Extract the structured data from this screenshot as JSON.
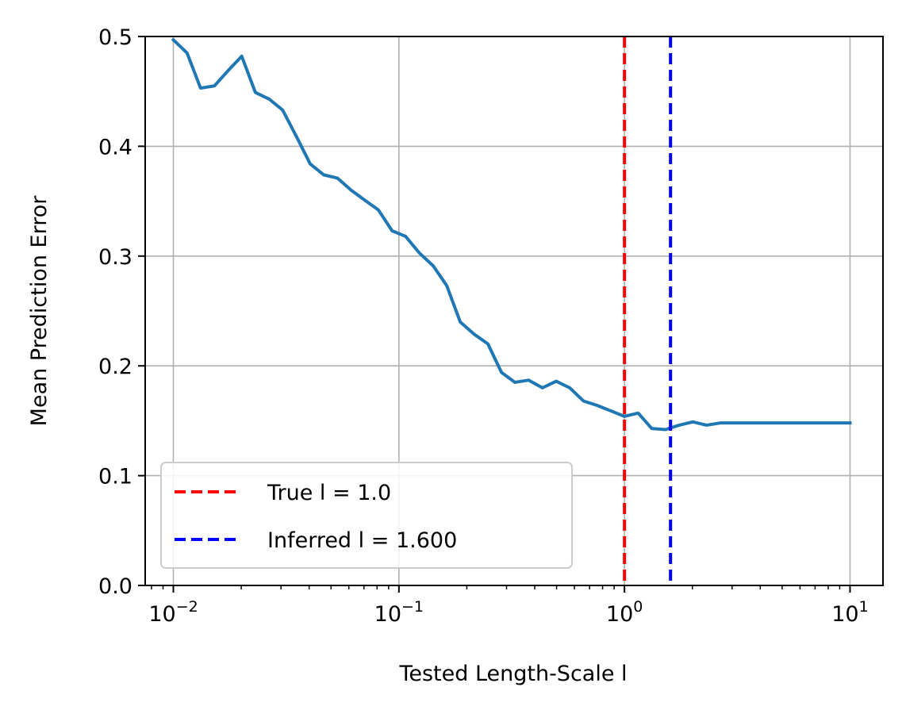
{
  "chart_data": {
    "type": "line",
    "title": "",
    "xlabel": "Tested Length-Scale l",
    "ylabel": "Mean Prediction Error",
    "xscale": "log",
    "xlim": [
      0.0075,
      14
    ],
    "ylim": [
      0,
      0.5
    ],
    "grid": true,
    "legend_placement": "lower-left",
    "x_ticks": [
      {
        "value": 0.01,
        "base": "10",
        "exp": "−2"
      },
      {
        "value": 0.1,
        "base": "10",
        "exp": "−1"
      },
      {
        "value": 1,
        "base": "10",
        "exp": "0"
      },
      {
        "value": 10,
        "base": "10",
        "exp": "1"
      }
    ],
    "y_ticks": [
      {
        "value": 0.0,
        "label": "0.0"
      },
      {
        "value": 0.1,
        "label": "0.1"
      },
      {
        "value": 0.2,
        "label": "0.2"
      },
      {
        "value": 0.3,
        "label": "0.3"
      },
      {
        "value": 0.4,
        "label": "0.4"
      },
      {
        "value": 0.5,
        "label": "0.5"
      }
    ],
    "series": [
      {
        "color": "#1f77b4",
        "x": [
          0.01,
          0.0115,
          0.0132,
          0.0152,
          0.0175,
          0.0201,
          0.0231,
          0.0266,
          0.0305,
          0.0351,
          0.0404,
          0.0464,
          0.0534,
          0.0614,
          0.0705,
          0.0811,
          0.0933,
          0.107,
          0.123,
          0.142,
          0.163,
          0.187,
          0.215,
          0.248,
          0.285,
          0.327,
          0.376,
          0.433,
          0.498,
          0.572,
          0.658,
          0.756,
          0.87,
          1.0,
          1.15,
          1.32,
          1.52,
          1.75,
          2.01,
          2.31,
          2.66,
          3.05,
          3.51,
          4.04,
          4.64,
          5.34,
          6.14,
          7.05,
          8.11,
          10.0
        ],
        "values": [
          0.497,
          0.485,
          0.453,
          0.455,
          0.469,
          0.482,
          0.449,
          0.443,
          0.433,
          0.409,
          0.384,
          0.374,
          0.371,
          0.36,
          0.351,
          0.342,
          0.323,
          0.318,
          0.303,
          0.291,
          0.273,
          0.24,
          0.229,
          0.22,
          0.194,
          0.185,
          0.187,
          0.18,
          0.186,
          0.18,
          0.168,
          0.164,
          0.159,
          0.154,
          0.157,
          0.143,
          0.142,
          0.146,
          0.149,
          0.146,
          0.148,
          0.148,
          0.148,
          0.148,
          0.148,
          0.148,
          0.148,
          0.148,
          0.148,
          0.148
        ]
      }
    ],
    "vlines": [
      {
        "x": 1.0,
        "color": "#ff0000",
        "label": "True l = 1.0"
      },
      {
        "x": 1.6,
        "color": "#0000ff",
        "label": "Inferred l = 1.600"
      }
    ]
  }
}
